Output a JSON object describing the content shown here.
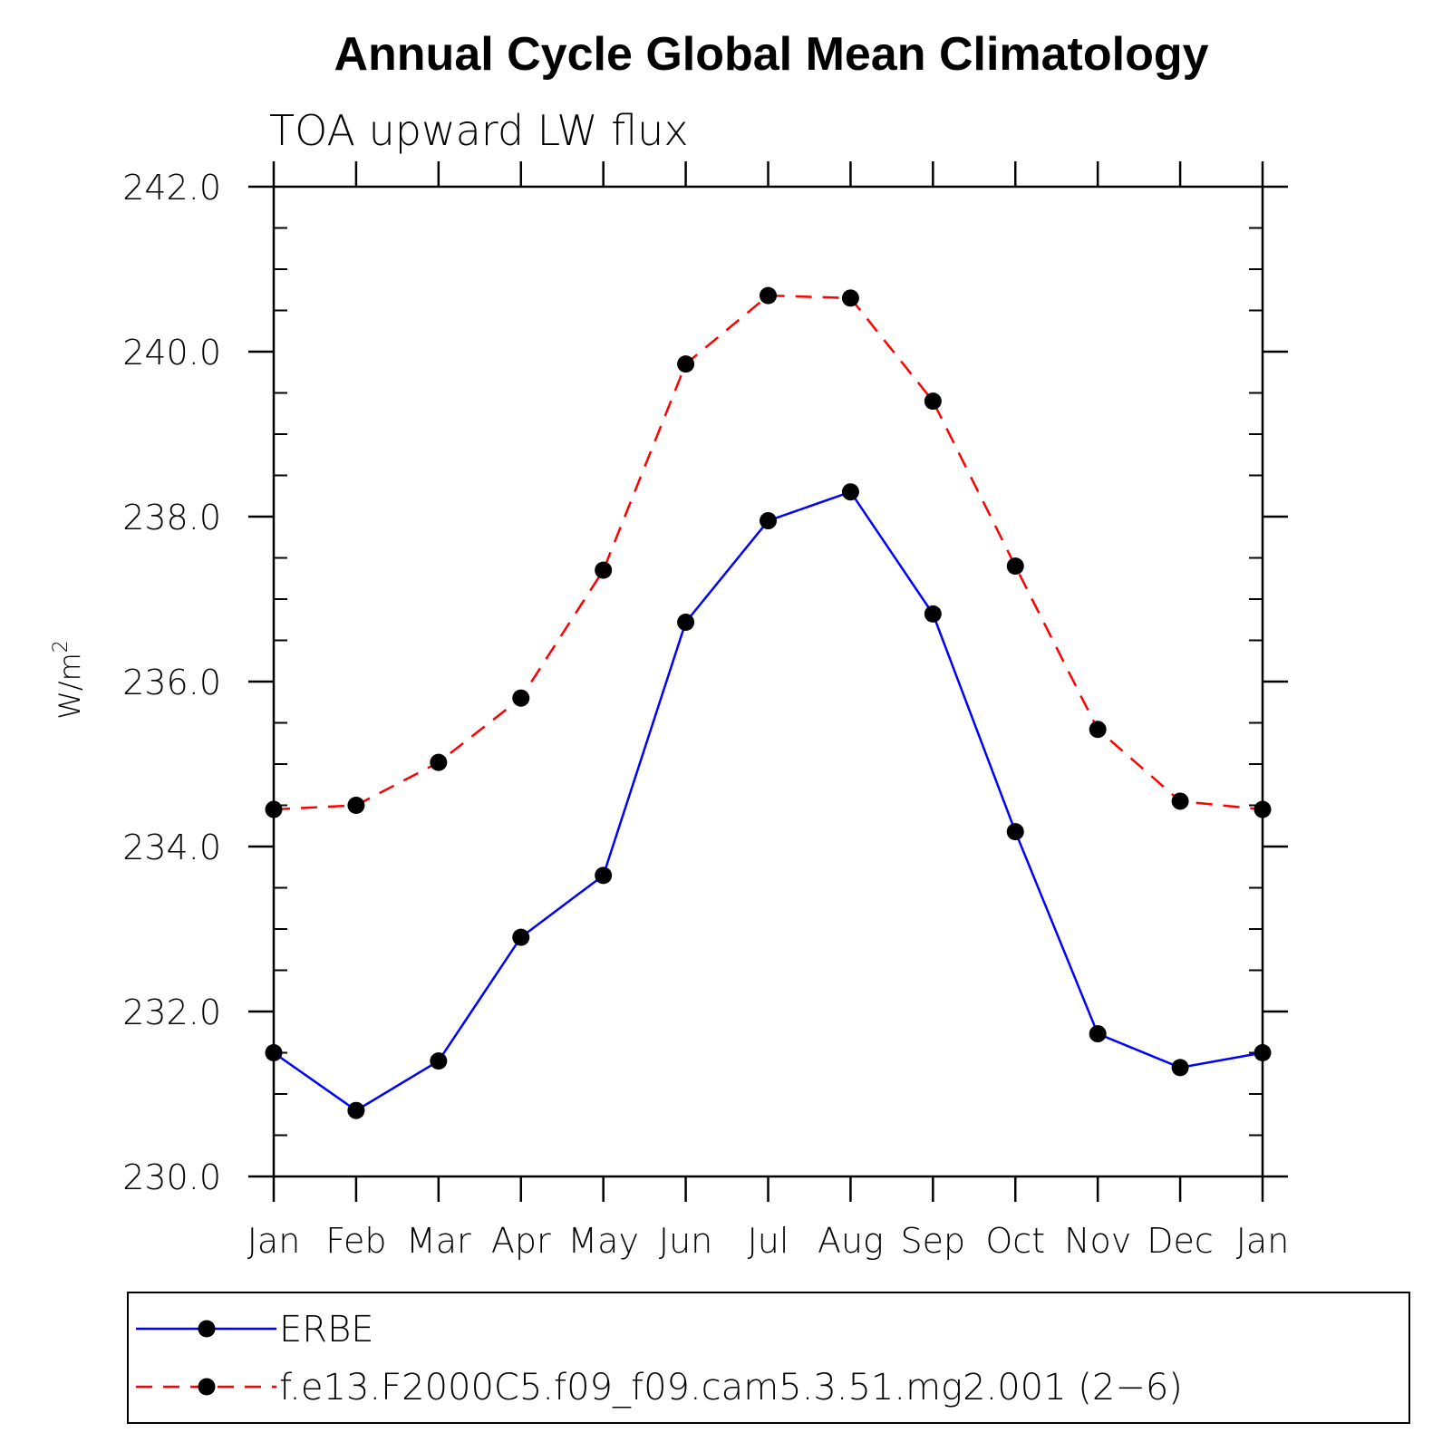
{
  "chart_data": {
    "type": "line",
    "title": "Annual Cycle Global Mean Climatology",
    "subtitle": "TOA upward LW flux",
    "xlabel": "",
    "ylabel": "W/m",
    "ylabel_superscript": "2",
    "categories": [
      "Jan",
      "Feb",
      "Mar",
      "Apr",
      "May",
      "Jun",
      "Jul",
      "Aug",
      "Sep",
      "Oct",
      "Nov",
      "Dec",
      "Jan"
    ],
    "ylim": [
      230.0,
      242.0
    ],
    "yticks": [
      "230.0",
      "232.0",
      "234.0",
      "236.0",
      "238.0",
      "240.0",
      "242.0"
    ],
    "yticks_values": [
      230.0,
      232.0,
      234.0,
      236.0,
      238.0,
      240.0,
      242.0
    ],
    "y_minor_step": 0.5,
    "grid": false,
    "legend_placement": "bottom",
    "series": [
      {
        "name": "ERBE",
        "color": "#0000ff",
        "line_style": "solid",
        "marker": "filled-circle",
        "values": [
          231.5,
          230.8,
          231.4,
          232.9,
          233.65,
          236.72,
          237.95,
          238.3,
          236.82,
          234.18,
          231.73,
          231.32,
          231.5
        ]
      },
      {
        "name": "f.e13.F2000C5.f09_f09.cam5.3.51.mg2.001 (2−6)",
        "color": "#ff0000",
        "line_style": "dashed",
        "marker": "filled-circle",
        "values": [
          234.45,
          234.5,
          235.02,
          235.8,
          237.35,
          239.85,
          240.68,
          240.65,
          239.4,
          237.4,
          235.42,
          234.55,
          234.45
        ]
      }
    ]
  },
  "colors": {
    "marker": "#000000",
    "axes": "#000000",
    "background": "#ffffff"
  }
}
